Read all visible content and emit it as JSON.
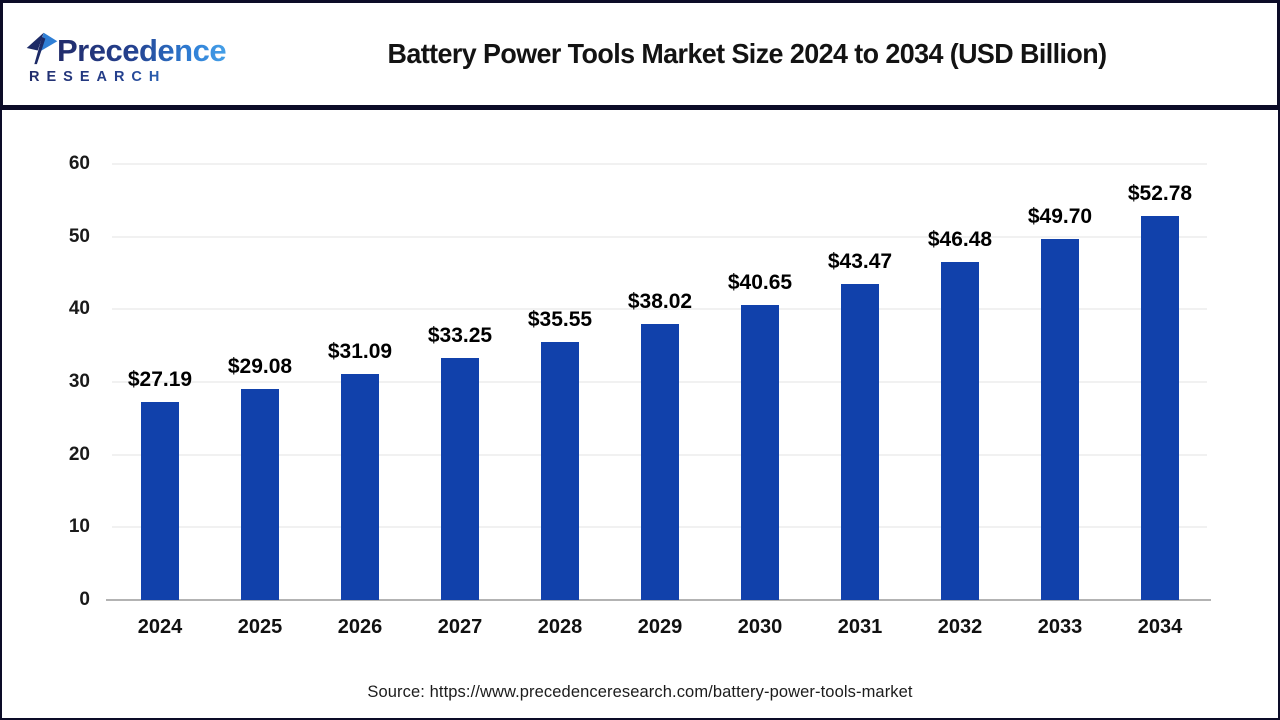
{
  "header": {
    "logo": {
      "brand": "Precedence",
      "sub": "RESEARCH",
      "mark_icon": "paper-plane-logo-mark",
      "colors": {
        "navy": "#222c6b",
        "blue": "#2f7fd6",
        "light_blue": "#45a0e8"
      }
    },
    "title": "Battery Power Tools Market Size 2024 to 2034 (USD Billion)"
  },
  "chart_data": {
    "type": "bar",
    "title": "Battery Power Tools Market Size 2024 to 2034 (USD Billion)",
    "categories": [
      "2024",
      "2025",
      "2026",
      "2027",
      "2028",
      "2029",
      "2030",
      "2031",
      "2032",
      "2033",
      "2034"
    ],
    "values": [
      27.19,
      29.08,
      31.09,
      33.25,
      35.55,
      38.02,
      40.65,
      43.47,
      46.48,
      49.7,
      52.78
    ],
    "value_labels": [
      "$27.19",
      "$29.08",
      "$31.09",
      "$33.25",
      "$35.55",
      "$38.02",
      "$40.65",
      "$43.47",
      "$46.48",
      "$49.70",
      "$52.78"
    ],
    "unit": "USD Billion",
    "xlabel": "",
    "ylabel": "",
    "ylim": [
      0,
      60
    ],
    "yticks": [
      0,
      10,
      20,
      30,
      40,
      50,
      60
    ],
    "grid": "horizontal",
    "legend": "none",
    "bar_color": "#1141ab",
    "gridline_color": "#f1f1f1",
    "baseline_color": "#b3b3b3"
  },
  "footer": {
    "source": "Source: https://www.precedenceresearch.com/battery-power-tools-market"
  }
}
